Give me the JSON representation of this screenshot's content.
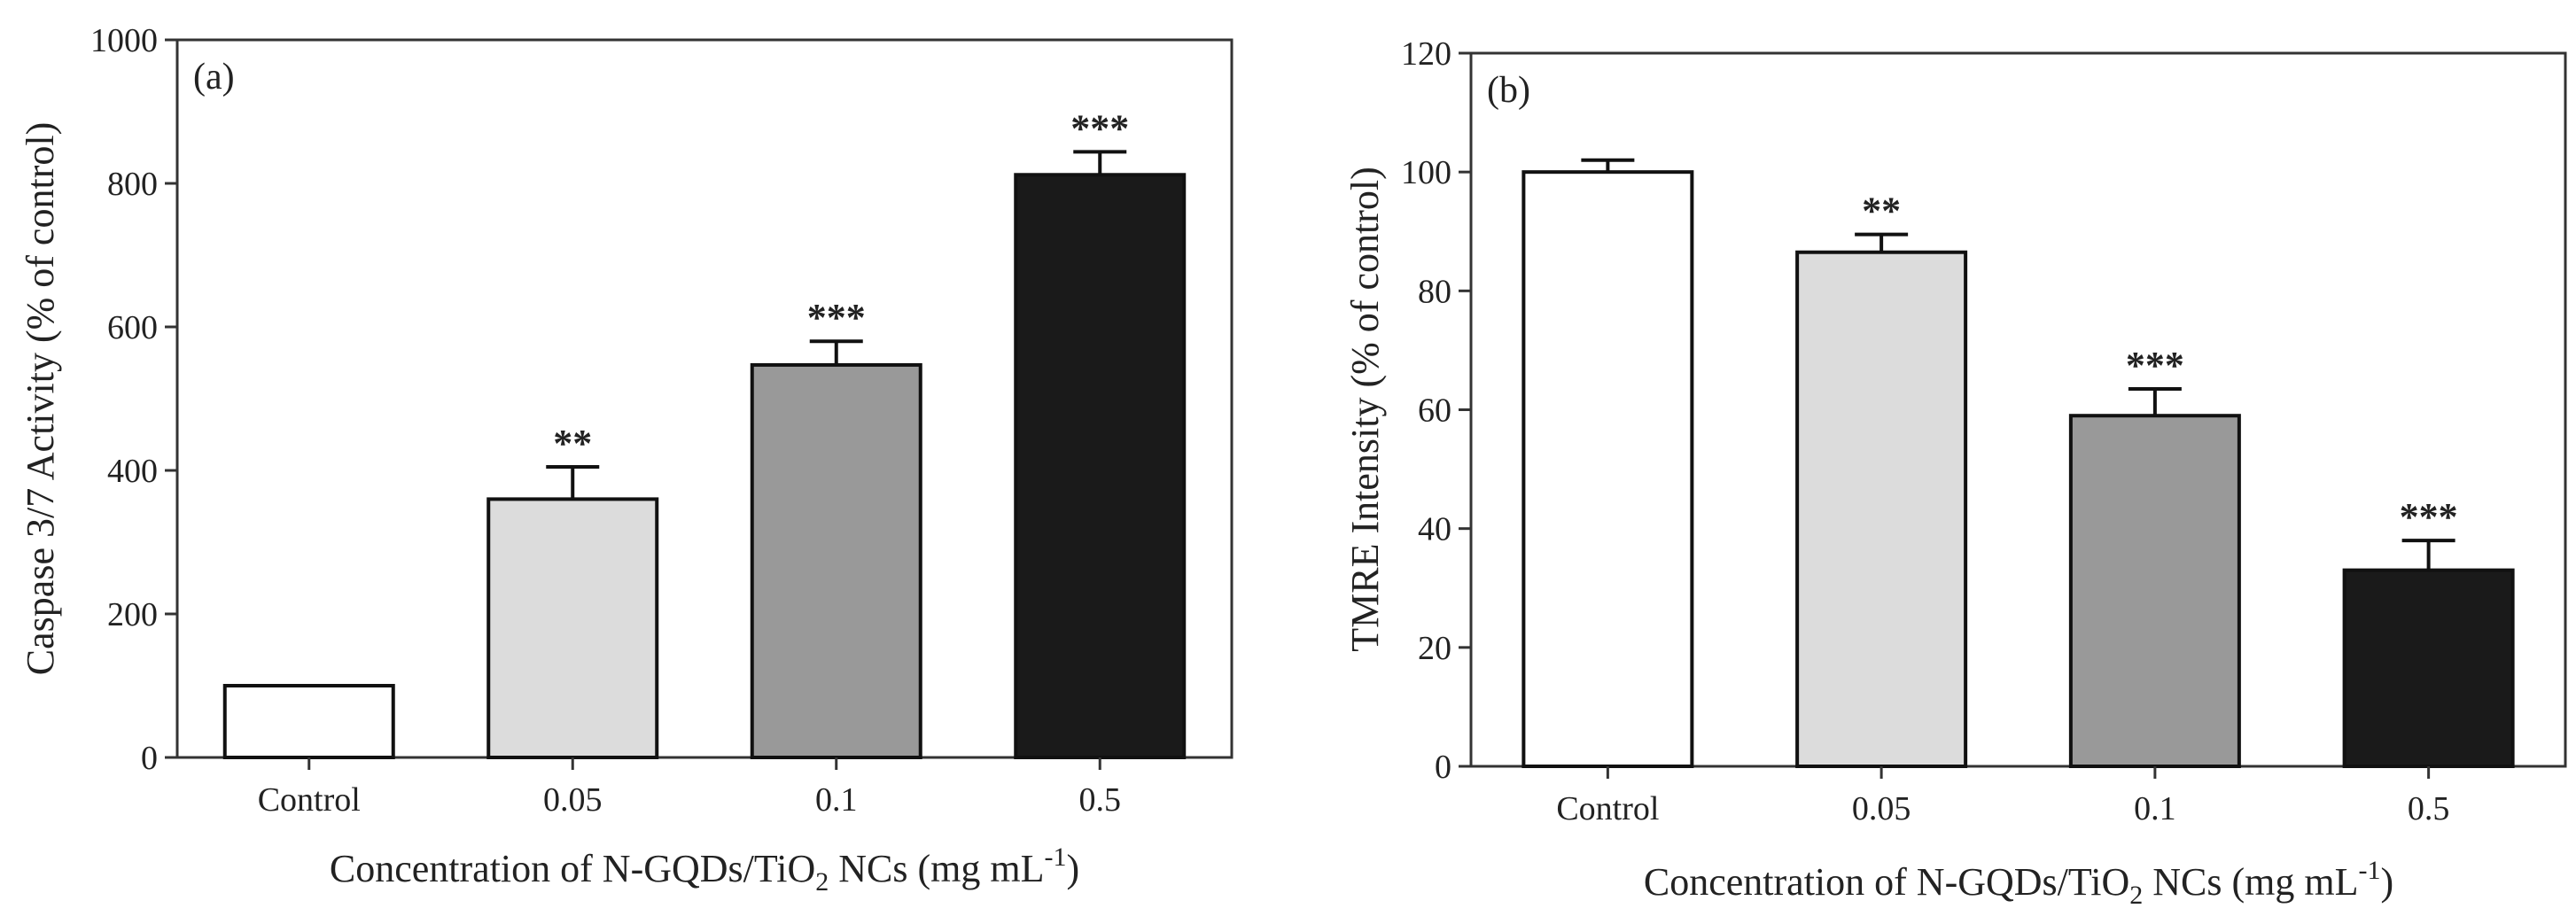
{
  "chart_data": [
    {
      "type": "bar",
      "panel_label": "(a)",
      "categories": [
        "Control",
        "0.05",
        "0.1",
        "0.5"
      ],
      "values": [
        100,
        360,
        547,
        812
      ],
      "errors": [
        0,
        45,
        33,
        32
      ],
      "significance": [
        "",
        "**",
        "***",
        "***"
      ],
      "bar_colors": [
        "#ffffff",
        "#dcdcdc",
        "#999999",
        "#1a1a1a"
      ],
      "ylabel": "Caspase 3/7 Activity (% of control)",
      "xlabel": {
        "pre": "Concentration of N-GQDs/TiO",
        "sub": "2",
        "mid": " NCs (mg mL",
        "sup": "-1",
        "post": ")"
      },
      "ylim": [
        0,
        1000
      ],
      "yticks": [
        0,
        200,
        400,
        600,
        800,
        1000
      ],
      "grid": false,
      "legend": "none"
    },
    {
      "type": "bar",
      "panel_label": "(b)",
      "categories": [
        "Control",
        "0.05",
        "0.1",
        "0.5"
      ],
      "values": [
        100,
        86.5,
        59,
        33
      ],
      "errors": [
        2,
        3,
        4.5,
        5
      ],
      "significance": [
        "",
        "**",
        "***",
        "***"
      ],
      "bar_colors": [
        "#ffffff",
        "#dcdcdc",
        "#999999",
        "#1a1a1a"
      ],
      "ylabel": "TMRE Intensity (% of control)",
      "xlabel": {
        "pre": "Concentration of N-GQDs/TiO",
        "sub": "2",
        "mid": " NCs (mg mL",
        "sup": "-1",
        "post": ")"
      },
      "ylim": [
        0,
        120
      ],
      "yticks": [
        0,
        20,
        40,
        60,
        80,
        100,
        120
      ],
      "grid": false,
      "legend": "none"
    }
  ]
}
